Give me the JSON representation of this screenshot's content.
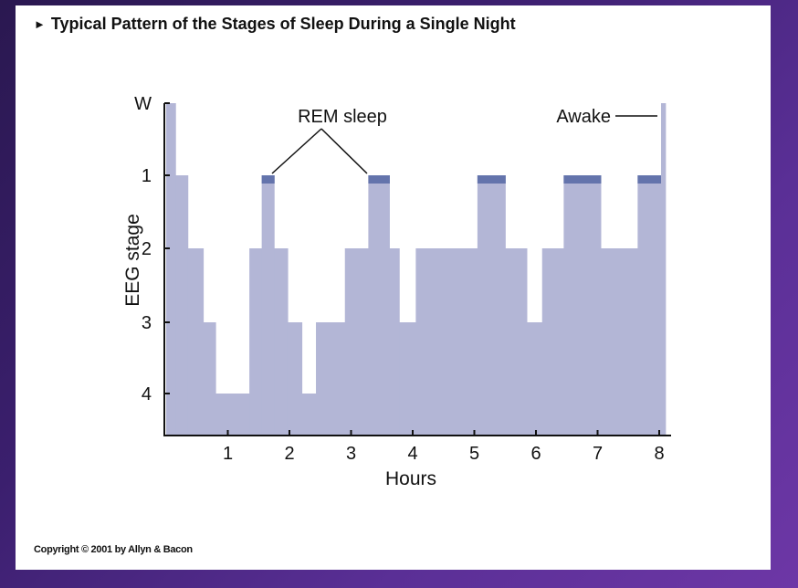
{
  "slide": {
    "title": "Typical Pattern of the Stages of Sleep During a Single Night",
    "copyright": "Copyright © 2001 by Allyn & Bacon"
  },
  "chart_data": {
    "type": "area",
    "title": "Typical Pattern of the Stages of Sleep During a Single Night",
    "xlabel": "Hours",
    "ylabel": "EEG stage",
    "x_ticks": [
      "1",
      "2",
      "3",
      "4",
      "5",
      "6",
      "7",
      "8"
    ],
    "y_ticks": [
      "W",
      "1",
      "2",
      "3",
      "4"
    ],
    "xlim": [
      0,
      8.1
    ],
    "ylim": [
      "W",
      4
    ],
    "annotations": [
      {
        "text": "REM sleep",
        "points_to_x": [
          1.7,
          3.25
        ]
      },
      {
        "text": "Awake",
        "points_to_x": [
          8.0
        ]
      }
    ],
    "colors": {
      "fill": "#b3b6d6",
      "rem": "#6474ac",
      "axis": "#111111"
    },
    "series": [
      {
        "steps": [
          {
            "x0": 0.0,
            "x1": 0.15,
            "stage": 0
          },
          {
            "x0": 0.15,
            "x1": 0.35,
            "stage": 1
          },
          {
            "x0": 0.35,
            "x1": 0.6,
            "stage": 2
          },
          {
            "x0": 0.6,
            "x1": 0.8,
            "stage": 3
          },
          {
            "x0": 0.8,
            "x1": 1.35,
            "stage": 4
          },
          {
            "x0": 1.35,
            "x1": 1.55,
            "stage": 2
          },
          {
            "x0": 1.55,
            "x1": 1.75,
            "stage": 1,
            "rem": true
          },
          {
            "x0": 1.75,
            "x1": 1.97,
            "stage": 2
          },
          {
            "x0": 1.97,
            "x1": 2.2,
            "stage": 3
          },
          {
            "x0": 2.2,
            "x1": 2.43,
            "stage": 4
          },
          {
            "x0": 2.43,
            "x1": 2.9,
            "stage": 3
          },
          {
            "x0": 2.9,
            "x1": 3.28,
            "stage": 2
          },
          {
            "x0": 3.28,
            "x1": 3.62,
            "stage": 1,
            "rem": true
          },
          {
            "x0": 3.62,
            "x1": 3.78,
            "stage": 2
          },
          {
            "x0": 3.78,
            "x1": 4.05,
            "stage": 3
          },
          {
            "x0": 4.05,
            "x1": 5.05,
            "stage": 2
          },
          {
            "x0": 5.05,
            "x1": 5.5,
            "stage": 1,
            "rem": true
          },
          {
            "x0": 5.5,
            "x1": 5.85,
            "stage": 2
          },
          {
            "x0": 5.85,
            "x1": 6.1,
            "stage": 3
          },
          {
            "x0": 6.1,
            "x1": 6.45,
            "stage": 2
          },
          {
            "x0": 6.45,
            "x1": 7.05,
            "stage": 1,
            "rem": true
          },
          {
            "x0": 7.05,
            "x1": 7.65,
            "stage": 2
          },
          {
            "x0": 7.65,
            "x1": 8.03,
            "stage": 1,
            "rem": true
          },
          {
            "x0": 8.03,
            "x1": 8.1,
            "stage": 0
          }
        ]
      }
    ]
  }
}
